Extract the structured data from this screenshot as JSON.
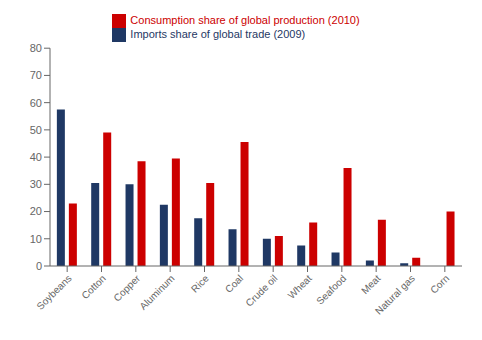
{
  "chart_data": {
    "type": "bar",
    "categories": [
      "Soybeans",
      "Cotton",
      "Copper",
      "Aluminum",
      "Rice",
      "Coal",
      "Crude oil",
      "Wheat",
      "Seafood",
      "Meat",
      "Natural gas",
      "Corn"
    ],
    "series": [
      {
        "name": "Imports share of global trade (2009)",
        "color": "#1F3864",
        "values": [
          57.5,
          30.5,
          30.0,
          22.5,
          17.5,
          13.5,
          10.0,
          7.5,
          5.0,
          2.0,
          1.0,
          0
        ]
      },
      {
        "name": "Consumption share of global production (2010)",
        "color": "#CC0000",
        "values": [
          23.0,
          49.0,
          38.5,
          39.5,
          30.5,
          45.5,
          11.0,
          16.0,
          36.0,
          17.0,
          3.0,
          20.0
        ]
      }
    ],
    "ylim": [
      0,
      80
    ],
    "yticks": [
      0,
      10,
      20,
      30,
      40,
      50,
      60,
      70,
      80
    ],
    "legend": "upper center",
    "grid": false
  }
}
